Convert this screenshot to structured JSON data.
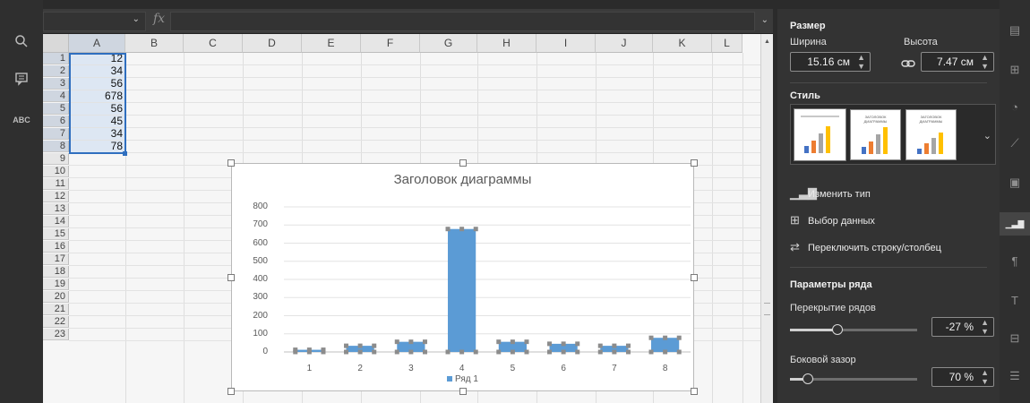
{
  "left_toolbar": {
    "icons": [
      "search-icon",
      "comment-icon",
      "spellcheck-icon"
    ],
    "spell_glyph": "ABC"
  },
  "formula_bar": {
    "fx_label": "fx",
    "formula": "",
    "name_box": ""
  },
  "sheet": {
    "columns": [
      "A",
      "B",
      "C",
      "D",
      "E",
      "F",
      "G",
      "H",
      "I",
      "J",
      "K",
      "L"
    ],
    "rows": [
      "1",
      "2",
      "3",
      "4",
      "5",
      "6",
      "7",
      "8",
      "9",
      "10",
      "11",
      "12",
      "13",
      "14",
      "15",
      "16",
      "17",
      "18",
      "19",
      "20",
      "21",
      "22",
      "23"
    ],
    "column_a_values": [
      "12",
      "34",
      "56",
      "678",
      "56",
      "45",
      "34",
      "78"
    ]
  },
  "chart_data": {
    "type": "bar",
    "title": "Заголовок диаграммы",
    "categories": [
      "1",
      "2",
      "3",
      "4",
      "5",
      "6",
      "7",
      "8"
    ],
    "series": [
      {
        "name": "Ряд 1",
        "values": [
          12,
          34,
          56,
          678,
          56,
          45,
          34,
          78
        ],
        "color": "#5b9bd5"
      }
    ],
    "yticks": [
      "0",
      "100",
      "200",
      "300",
      "400",
      "500",
      "600",
      "700",
      "800"
    ],
    "ylim": [
      0,
      800
    ],
    "grid": true,
    "legend_position": "bottom"
  },
  "panel": {
    "size_title": "Размер",
    "width_label": "Ширина",
    "height_label": "Высота",
    "width_value": "15.16 см",
    "height_value": "7.47 см",
    "style_title": "Стиль",
    "style_thumb_caption": "ЗАГОЛОВОК ДИАГРАММЫ",
    "actions": {
      "change_type": "Изменить тип",
      "select_data": "Выбор данных",
      "switch_rowcol": "Переключить строку/столбец"
    },
    "series_params_title": "Параметры ряда",
    "overlap_label": "Перекрытие рядов",
    "overlap_value": "-27 %",
    "overlap_level": 0.37,
    "gap_label": "Боковой зазор",
    "gap_value": "70 %",
    "gap_level": 0.14
  },
  "right_strip": {
    "icons": [
      "paragraph-settings-icon",
      "table-settings-icon",
      "shape-settings-icon",
      "image-settings-icon",
      "picture-icon",
      "chart-settings-icon",
      "paragraph-mark-icon",
      "text-art-icon",
      "pivot-table-icon",
      "form-icon"
    ],
    "active": "chart-settings-icon"
  },
  "colors": {
    "accent_series": "#5b9bd5",
    "panel_bg": "#333333",
    "selection": "#2f6fbf"
  }
}
